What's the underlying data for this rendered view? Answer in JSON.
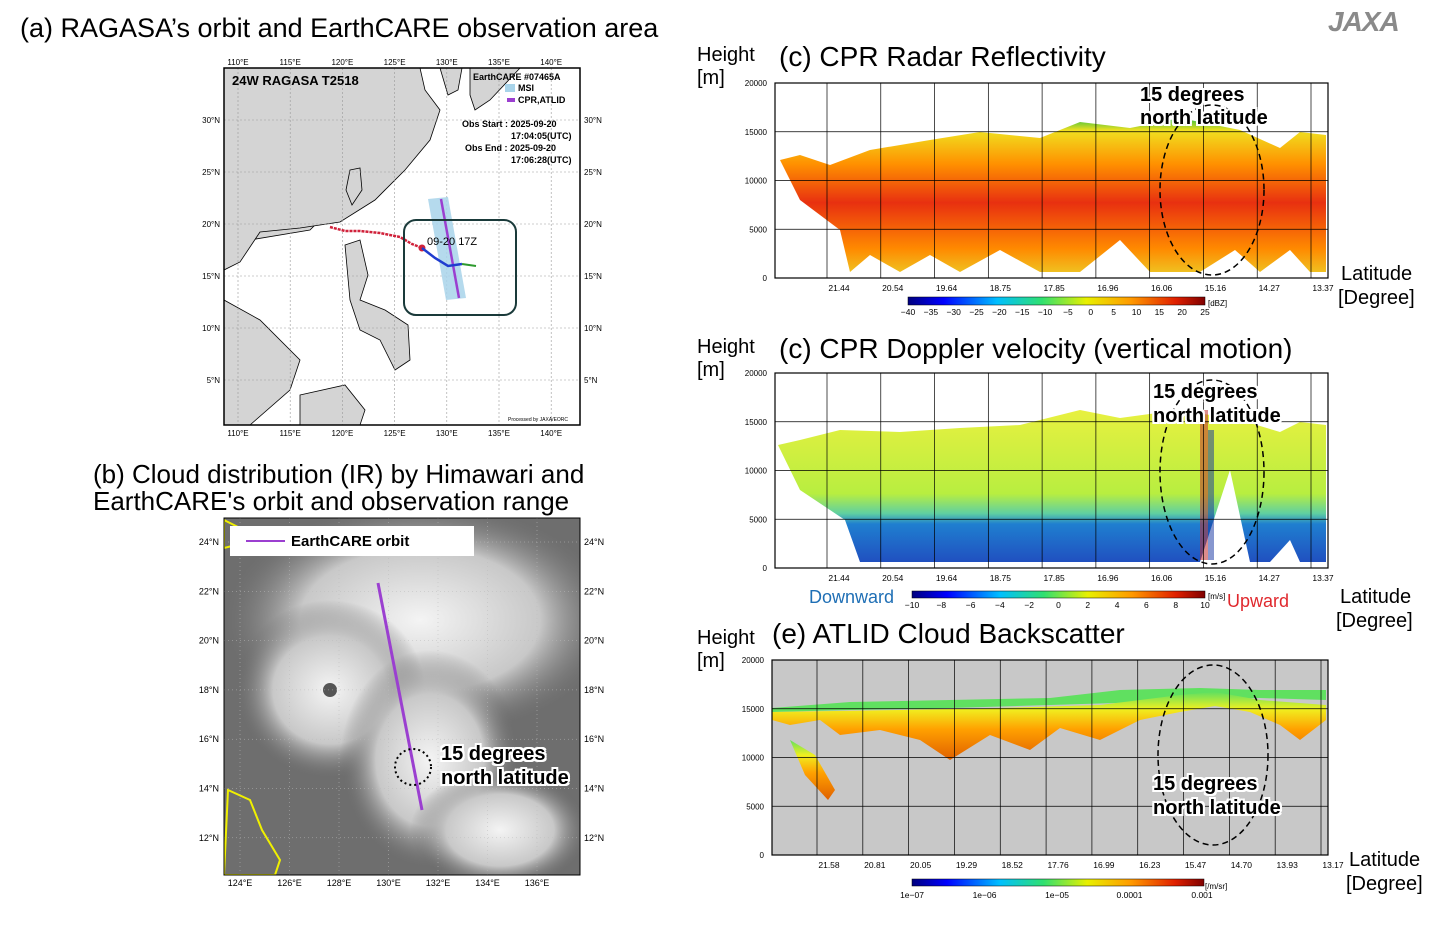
{
  "logo": "JAXA",
  "panel_a": {
    "title": "(a) RAGASA’s orbit and EarthCARE observation area",
    "storm_label": "24W  RAGASA  T2518",
    "legend_title": "EarthCARE #07465A",
    "legend_msi": "MSI",
    "legend_cpr": "CPR,ATLID",
    "obs_start_label": "Obs Start : 2025-09-20",
    "obs_start_time": "17:04:05(UTC)",
    "obs_end_label": "Obs End : 2025-09-20",
    "obs_end_time": "17:06:28(UTC)",
    "track_label": "09-20 17Z",
    "credit": "Processed by JAXA/EORC",
    "lon_ticks": [
      "110°E",
      "115°E",
      "120°E",
      "125°E",
      "130°E",
      "135°E",
      "140°E"
    ],
    "lat_ticks": [
      "30°N",
      "25°N",
      "20°N",
      "15°N",
      "10°N",
      "5°N"
    ],
    "colors": {
      "msi": "#a8d4ea",
      "cpr": "#9b3fd0",
      "track_red": "#d0213a",
      "track_blue": "#1f3ccf",
      "track_green": "#2e9a2e"
    }
  },
  "panel_b": {
    "title_line1": "(b) Cloud distribution (IR) by Himawari and",
    "title_line2": "EarthCARE's orbit and observation range",
    "legend_label": "EarthCARE orbit",
    "callout_line1": "15 degrees",
    "callout_line2": "north latitude",
    "lat_ticks": [
      "24°N",
      "22°N",
      "20°N",
      "18°N",
      "16°N",
      "14°N",
      "12°N"
    ],
    "lon_ticks": [
      "124°E",
      "126°E",
      "128°E",
      "130°E",
      "132°E",
      "134°E",
      "136°E"
    ]
  },
  "panel_c1": {
    "title": "(c) CPR Radar Reflectivity",
    "ylabel_1": "Height",
    "ylabel_2": "[m]",
    "xlabel_1": "Latitude",
    "xlabel_2": "[Degree]",
    "y_ticks": [
      "20000",
      "15000",
      "10000",
      "5000",
      "0"
    ],
    "x_ticks": [
      "21.44",
      "20.54",
      "19.64",
      "18.75",
      "17.85",
      "16.96",
      "16.06",
      "15.16",
      "14.27",
      "13.37"
    ],
    "callout_line1": "15 degrees",
    "callout_line2": "north latitude",
    "colorbar_unit": "[dBZ]",
    "colorbar_ticks": [
      "−40",
      "−35",
      "−30",
      "−25",
      "−20",
      "−15",
      "−10",
      "−5",
      "0",
      "5",
      "10",
      "15",
      "20",
      "25"
    ]
  },
  "panel_c2": {
    "title": "(c) CPR Doppler velocity (vertical motion)",
    "ylabel_1": "Height",
    "ylabel_2": "[m]",
    "xlabel_1": "Latitude",
    "xlabel_2": "[Degree]",
    "y_ticks": [
      "20000",
      "15000",
      "10000",
      "5000",
      "0"
    ],
    "x_ticks": [
      "21.44",
      "20.54",
      "19.64",
      "18.75",
      "17.85",
      "16.96",
      "16.06",
      "15.16",
      "14.27",
      "13.37"
    ],
    "callout_line1": "15 degrees",
    "callout_line2": "north latitude",
    "downward": "Downward",
    "upward": "Upward",
    "colorbar_unit": "[m/s]",
    "colorbar_ticks": [
      "−10",
      "−8",
      "−6",
      "−4",
      "−2",
      "0",
      "2",
      "4",
      "6",
      "8",
      "10"
    ],
    "colors": {
      "downward": "#1f6fb5",
      "upward": "#e0282d"
    }
  },
  "panel_e": {
    "title": "(e) ATLID Cloud Backscatter",
    "ylabel_1": "Height",
    "ylabel_2": "[m]",
    "xlabel_1": "Latitude",
    "xlabel_2": "[Degree]",
    "y_ticks": [
      "20000",
      "15000",
      "10000",
      "5000",
      "0"
    ],
    "x_ticks": [
      "21.58",
      "20.81",
      "20.05",
      "19.29",
      "18.52",
      "17.76",
      "16.99",
      "16.23",
      "15.47",
      "14.70",
      "13.93",
      "13.17"
    ],
    "callout_line1": "15 degrees",
    "callout_line2": "north latitude",
    "colorbar_unit": "[/m/sr]",
    "colorbar_ticks": [
      "1e−07",
      "1e−06",
      "1e−05",
      "0.0001",
      "0.001"
    ]
  }
}
